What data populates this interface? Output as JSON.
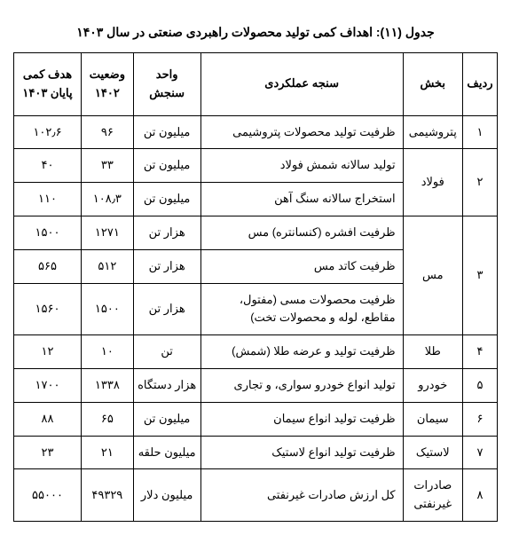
{
  "title": "جدول (۱۱): اهداف کمی تولید محصولات راهبردی صنعتی در سال ۱۴۰۳",
  "headers": {
    "radif": "ردیف",
    "bakhsh": "بخش",
    "sanjeh": "سنجه عملکردی",
    "vahed": "واحد سنجش",
    "vaziat": "وضعیت ۱۴۰۲",
    "hadaf": "هدف کمی پایان ۱۴۰۳"
  },
  "rows": [
    {
      "radif": "۱",
      "bakhsh": "پتروشیمی",
      "sanjeh": "ظرفیت تولید محصولات پتروشیمی",
      "vahed": "میلیون تن",
      "vaziat": "۹۶",
      "hadaf": "۱۰۲٫۶"
    },
    {
      "radif": "۲",
      "bakhsh": "فولاد",
      "sanjeh": "تولید سالانه شمش فولاد",
      "vahed": "میلیون تن",
      "vaziat": "۳۳",
      "hadaf": "۴۰"
    },
    {
      "sanjeh": "استخراج سالانه سنگ آهن",
      "vahed": "میلیون تن",
      "vaziat": "۱۰۸٫۳",
      "hadaf": "۱۱۰"
    },
    {
      "radif": "۳",
      "bakhsh": "مس",
      "sanjeh": "ظرفیت افشره (کنسانتره) مس",
      "vahed": "هزار تن",
      "vaziat": "۱۲۷۱",
      "hadaf": "۱۵۰۰"
    },
    {
      "sanjeh": "ظرفیت کاتد مس",
      "vahed": "هزار تن",
      "vaziat": "۵۱۲",
      "hadaf": "۵۶۵"
    },
    {
      "sanjeh": "ظرفیت محصولات مسی (مفتول، مقاطع، لوله و محصولات تخت)",
      "vahed": "هزار تن",
      "vaziat": "۱۵۰۰",
      "hadaf": "۱۵۶۰"
    },
    {
      "radif": "۴",
      "bakhsh": "طلا",
      "sanjeh": "ظرفیت تولید و عرضه طلا (شمش)",
      "vahed": "تن",
      "vaziat": "۱۰",
      "hadaf": "۱۲"
    },
    {
      "radif": "۵",
      "bakhsh": "خودرو",
      "sanjeh": "تولید انواع خودرو سواری، و تجاری",
      "vahed": "هزار دستگاه",
      "vaziat": "۱۳۳۸",
      "hadaf": "۱۷۰۰"
    },
    {
      "radif": "۶",
      "bakhsh": "سیمان",
      "sanjeh": "ظرفیت تولید انواع سیمان",
      "vahed": "میلیون تن",
      "vaziat": "۶۵",
      "hadaf": "۸۸"
    },
    {
      "radif": "۷",
      "bakhsh": "لاستیک",
      "sanjeh": "ظرفیت تولید انواع لاستیک",
      "vahed": "میلیون حلقه",
      "vaziat": "۲۱",
      "hadaf": "۲۳"
    },
    {
      "radif": "۸",
      "bakhsh": "صادرات غیرنفتی",
      "sanjeh": "کل ارزش صادرات غیرنفتی",
      "vahed": "میلیون دلار",
      "vaziat": "۴۹۳۲۹",
      "hadaf": "۵۵۰۰۰"
    }
  ]
}
